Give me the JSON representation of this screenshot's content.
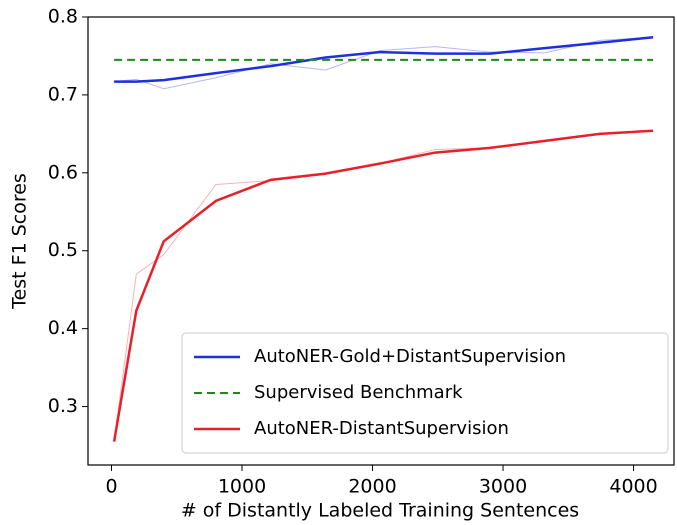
{
  "chart_data": {
    "type": "line",
    "xlabel": "# of Distantly Labeled Training Sentences",
    "ylabel": "Test F1 Scores",
    "x": [
      20,
      190,
      400,
      800,
      1220,
      1640,
      2060,
      2480,
      2900,
      3320,
      3740,
      4150
    ],
    "series": [
      {
        "color": "#b3b8f5",
        "style": "solid",
        "width": 1,
        "values": [
          0.717,
          0.72,
          0.708,
          0.722,
          0.74,
          0.732,
          0.757,
          0.762,
          0.755,
          0.754,
          0.77,
          0.774
        ]
      },
      {
        "color": "#f5b3b3",
        "style": "solid",
        "width": 1,
        "values": [
          0.255,
          0.47,
          0.495,
          0.585,
          0.59,
          0.598,
          0.612,
          0.63,
          0.632,
          0.64,
          0.65,
          0.654
        ]
      },
      {
        "name": "AutoNER-Gold+DistantSupervision",
        "color": "#1f2fe0",
        "style": "solid",
        "width": 2.5,
        "values": [
          0.717,
          0.717,
          0.719,
          0.728,
          0.737,
          0.748,
          0.755,
          0.753,
          0.753,
          0.76,
          0.767,
          0.774
        ]
      },
      {
        "name": "Supervised Benchmark",
        "color": "#1e8a1e",
        "style": "dashed",
        "width": 2,
        "values": [
          0.745,
          0.745,
          0.745,
          0.745,
          0.745,
          0.745,
          0.745,
          0.745,
          0.745,
          0.745,
          0.745,
          0.745
        ]
      },
      {
        "name": "AutoNER-DistantSupervision",
        "color": "#e8202a",
        "style": "solid",
        "width": 2.5,
        "values": [
          0.255,
          0.423,
          0.512,
          0.564,
          0.591,
          0.599,
          0.612,
          0.626,
          0.632,
          0.641,
          0.65,
          0.654
        ]
      }
    ],
    "xlim": [
      -180,
      4310
    ],
    "xticks": [
      0,
      1000,
      2000,
      3000,
      4000
    ],
    "ylim": [
      0.225,
      0.8
    ],
    "yticks": [
      0.3,
      0.4,
      0.5,
      0.6,
      0.7,
      0.8
    ],
    "legend": "lower right"
  }
}
